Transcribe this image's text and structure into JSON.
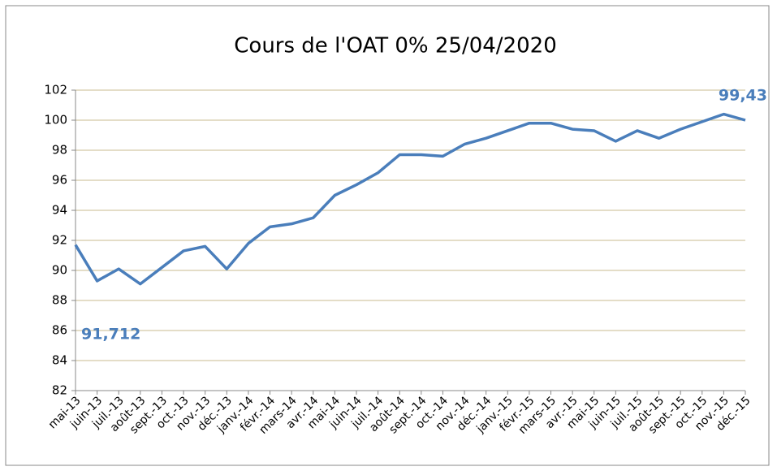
{
  "chart_data": {
    "type": "line",
    "title": "Cours de l'OAT 0% 25/04/2020",
    "categories": [
      "mai-13",
      "juin-13",
      "juil.-13",
      "août-13",
      "sept.-13",
      "oct.-13",
      "nov.-13",
      "déc.-13",
      "janv.-14",
      "févr.-14",
      "mars-14",
      "avr.-14",
      "mai-14",
      "juin-14",
      "juil.-14",
      "août-14",
      "sept.-14",
      "oct.-14",
      "nov.-14",
      "déc.-14",
      "janv.-15",
      "févr.-15",
      "mars-15",
      "avr.-15",
      "mai-15",
      "juin-15",
      "juil.-15",
      "août-15",
      "sept.-15",
      "oct.-15",
      "nov.-15",
      "déc.-15"
    ],
    "series": [
      {
        "name": "OAT 0% 25/04/2020",
        "color": "#4a7ebb",
        "values": [
          91.7,
          89.3,
          90.1,
          89.1,
          90.2,
          91.3,
          91.6,
          90.1,
          91.8,
          92.9,
          93.1,
          93.5,
          95.0,
          95.7,
          96.5,
          97.7,
          97.7,
          97.6,
          98.4,
          98.8,
          99.3,
          99.8,
          99.8,
          99.4,
          99.3,
          98.6,
          99.3,
          98.8,
          99.4,
          99.9,
          100.4,
          100.0
        ]
      }
    ],
    "ylim": [
      82,
      102
    ],
    "yticks": [
      82,
      84,
      86,
      88,
      90,
      92,
      94,
      96,
      98,
      100,
      102
    ],
    "grid": true,
    "annotations": [
      "91,712",
      "99,43"
    ]
  }
}
